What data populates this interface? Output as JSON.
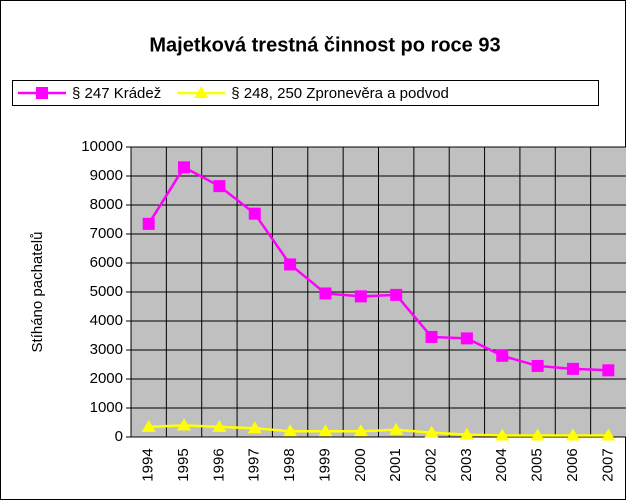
{
  "chart_data": {
    "type": "line",
    "title": "Majetková trestná činnost po roce 93",
    "y_label": "Stíháno pachatelů",
    "categories": [
      "1994",
      "1995",
      "1996",
      "1997",
      "1998",
      "1999",
      "2000",
      "2001",
      "2002",
      "2003",
      "2004",
      "2005",
      "2006",
      "2007"
    ],
    "series": [
      {
        "name": "§ 247 Krádež",
        "color": "#ff00ff",
        "marker": "square",
        "values": [
          7350,
          9300,
          8650,
          7700,
          5950,
          4950,
          4850,
          4900,
          3450,
          3400,
          2800,
          2450,
          2350,
          2300
        ]
      },
      {
        "name": "§ 248, 250 Zpronevěra a podvod",
        "color": "#ffff00",
        "marker": "triangle",
        "values": [
          350,
          400,
          350,
          300,
          200,
          200,
          200,
          250,
          150,
          80,
          50,
          50,
          50,
          50
        ]
      }
    ],
    "ylim": [
      0,
      10000
    ],
    "yticks": [
      0,
      1000,
      2000,
      3000,
      4000,
      5000,
      6000,
      7000,
      8000,
      9000,
      10000
    ],
    "grid": true
  }
}
